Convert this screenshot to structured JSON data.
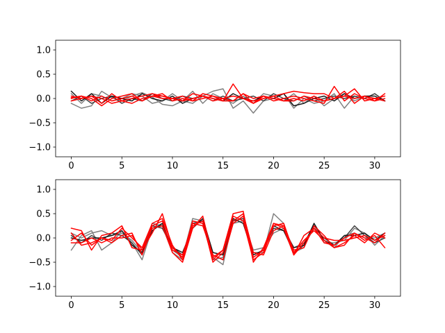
{
  "chart_data": [
    {
      "type": "line",
      "x": [
        0,
        1,
        2,
        3,
        4,
        5,
        6,
        7,
        8,
        9,
        10,
        11,
        12,
        13,
        14,
        15,
        16,
        17,
        18,
        19,
        20,
        21,
        22,
        23,
        24,
        25,
        26,
        27,
        28,
        29,
        30,
        31
      ],
      "xlim": [
        -1.55,
        32.55
      ],
      "ylim": [
        -1.2,
        1.2
      ],
      "xticks": [
        0,
        5,
        10,
        15,
        20,
        25,
        30
      ],
      "yticks": [
        1.0,
        0.5,
        0.0,
        -0.5,
        -1.0
      ],
      "ytick_labels": [
        "1.0",
        "0.5",
        "0.0",
        "−0.5",
        "−1.0"
      ],
      "grid": false,
      "series": [
        {
          "color": "#808080",
          "values": [
            -0.1,
            -0.2,
            -0.15,
            0.15,
            0.02,
            -0.05,
            0.05,
            0.12,
            0.03,
            -0.12,
            -0.15,
            -0.05,
            -0.1,
            0.05,
            0.15,
            0.2,
            -0.2,
            -0.05,
            -0.3,
            -0.05,
            0.0,
            0.1,
            -0.2,
            0.0,
            -0.1,
            -0.05,
            0.1,
            -0.2,
            0.05,
            0.0,
            0.1,
            -0.05
          ]
        },
        {
          "color": "#808080",
          "values": [
            0.1,
            -0.1,
            0.1,
            0.05,
            -0.05,
            0.0,
            0.1,
            0.05,
            -0.1,
            -0.05,
            0.1,
            -0.05,
            0.15,
            -0.1,
            0.1,
            0.0,
            -0.1,
            0.05,
            -0.1,
            0.1,
            0.05,
            -0.05,
            0.1,
            -0.1,
            0.05,
            -0.15,
            0.0,
            0.1,
            -0.05,
            0.05,
            0.0,
            -0.05
          ]
        },
        {
          "color": "#404040",
          "values": [
            -0.05,
            0.05,
            -0.1,
            0.0,
            0.05,
            -0.1,
            0.0,
            -0.05,
            0.1,
            0.0,
            -0.05,
            0.05,
            0.0,
            0.05,
            -0.05,
            0.05,
            -0.05,
            0.0,
            0.05,
            -0.05,
            0.1,
            0.0,
            -0.05,
            0.05,
            -0.05,
            0.0,
            0.05,
            0.0,
            0.05,
            0.0,
            0.1,
            -0.05
          ]
        },
        {
          "color": "#1a1a1a",
          "values": [
            0.15,
            -0.05,
            0.1,
            -0.1,
            0.05,
            0.0,
            -0.05,
            0.1,
            0.0,
            -0.05,
            0.05,
            -0.1,
            0.0,
            0.05,
            0.0,
            -0.05,
            0.1,
            0.0,
            -0.05,
            0.05,
            0.0,
            0.1,
            -0.15,
            -0.1,
            0.0,
            0.05,
            -0.05,
            0.1,
            0.0,
            0.05,
            0.05,
            -0.05
          ]
        },
        {
          "color": "#ff0000",
          "values": [
            0.05,
            0.0,
            0.05,
            -0.1,
            0.1,
            -0.05,
            0.0,
            0.05,
            0.1,
            0.05,
            0.0,
            -0.05,
            0.1,
            0.05,
            0.0,
            -0.05,
            0.3,
            0.0,
            -0.1,
            0.0,
            0.05,
            0.1,
            0.15,
            0.12,
            0.1,
            0.1,
            0.0,
            0.05,
            0.2,
            -0.05,
            0.0,
            0.05
          ]
        },
        {
          "color": "#ff0000",
          "values": [
            0.0,
            0.05,
            -0.05,
            0.05,
            -0.05,
            0.0,
            0.05,
            -0.05,
            0.05,
            0.1,
            -0.05,
            0.0,
            -0.05,
            0.1,
            0.05,
            0.0,
            -0.05,
            0.1,
            -0.1,
            0.05,
            -0.05,
            0.0,
            0.05,
            0.0,
            -0.05,
            -0.1,
            0.25,
            -0.05,
            0.1,
            0.0,
            -0.05,
            0.1
          ]
        },
        {
          "color": "#ff0000",
          "values": [
            -0.05,
            0.0,
            0.05,
            0.0,
            -0.1,
            -0.05,
            -0.1,
            0.0,
            0.05,
            0.05,
            0.0,
            -0.05,
            0.0,
            0.05,
            -0.05,
            0.0,
            0.05,
            0.0,
            -0.05,
            0.0,
            0.05,
            -0.05,
            0.0,
            -0.05,
            0.05,
            -0.05,
            0.0,
            0.05,
            0.0,
            0.05,
            -0.05,
            0.0
          ]
        },
        {
          "color": "#ff0000",
          "values": [
            0.02,
            0.05,
            0.0,
            -0.15,
            0.0,
            0.05,
            0.1,
            -0.05,
            0.05,
            0.0,
            0.0,
            0.05,
            -0.05,
            0.0,
            0.05,
            -0.05,
            -0.05,
            0.1,
            0.0,
            0.05,
            0.0,
            -0.05,
            -0.05,
            0.05,
            0.0,
            -0.05,
            0.0,
            0.15,
            -0.1,
            0.05,
            0.0,
            -0.05
          ]
        }
      ]
    },
    {
      "type": "line",
      "x": [
        0,
        1,
        2,
        3,
        4,
        5,
        6,
        7,
        8,
        9,
        10,
        11,
        12,
        13,
        14,
        15,
        16,
        17,
        18,
        19,
        20,
        21,
        22,
        23,
        24,
        25,
        26,
        27,
        28,
        29,
        30,
        31
      ],
      "xlim": [
        -1.55,
        32.55
      ],
      "ylim": [
        -1.2,
        1.2
      ],
      "xticks": [
        0,
        5,
        10,
        15,
        20,
        25,
        30
      ],
      "yticks": [
        1.0,
        0.5,
        0.0,
        -0.5,
        -1.0
      ],
      "ytick_labels": [
        "1.0",
        "0.5",
        "0.0",
        "−0.5",
        "−1.0"
      ],
      "grid": false,
      "series": [
        {
          "color": "#808080",
          "values": [
            -0.25,
            0.05,
            0.15,
            -0.25,
            -0.1,
            0.15,
            -0.1,
            -0.45,
            0.2,
            0.3,
            -0.25,
            -0.4,
            0.4,
            0.35,
            -0.4,
            -0.55,
            0.4,
            0.3,
            -0.3,
            -0.3,
            0.5,
            0.3,
            -0.3,
            -0.2,
            0.3,
            -0.1,
            -0.1,
            -0.05,
            0.2,
            0.1,
            -0.15,
            0.05
          ]
        },
        {
          "color": "#808080",
          "values": [
            0.1,
            0.0,
            0.1,
            0.15,
            0.05,
            0.1,
            -0.05,
            -0.3,
            0.3,
            0.25,
            -0.3,
            -0.45,
            0.35,
            0.3,
            -0.45,
            -0.4,
            0.3,
            0.35,
            -0.25,
            -0.2,
            0.1,
            0.2,
            -0.2,
            -0.1,
            0.25,
            -0.05,
            -0.2,
            0.05,
            0.1,
            0.0,
            0.0,
            0.1
          ]
        },
        {
          "color": "#404040",
          "values": [
            0.05,
            -0.1,
            0.05,
            -0.05,
            0.1,
            0.05,
            -0.1,
            -0.35,
            0.25,
            0.2,
            -0.2,
            -0.35,
            0.3,
            0.35,
            -0.35,
            -0.45,
            0.35,
            0.4,
            -0.35,
            -0.25,
            0.2,
            0.15,
            -0.3,
            -0.15,
            0.2,
            0.0,
            -0.15,
            0.0,
            0.25,
            0.05,
            -0.1,
            0.0
          ]
        },
        {
          "color": "#1a1a1a",
          "values": [
            0.0,
            -0.05,
            0.0,
            0.0,
            0.05,
            0.15,
            -0.15,
            -0.3,
            0.15,
            0.3,
            -0.2,
            -0.3,
            0.2,
            0.4,
            -0.3,
            -0.35,
            0.4,
            0.3,
            -0.35,
            -0.25,
            0.25,
            0.15,
            -0.2,
            -0.15,
            0.3,
            -0.05,
            -0.15,
            0.05,
            0.05,
            0.1,
            -0.05,
            0.1
          ]
        },
        {
          "color": "#ff0000",
          "values": [
            0.2,
            0.15,
            -0.25,
            0.05,
            0.1,
            0.25,
            -0.2,
            -0.25,
            0.1,
            0.5,
            -0.2,
            -0.4,
            0.35,
            0.3,
            -0.45,
            -0.25,
            0.5,
            0.55,
            -0.5,
            -0.2,
            0.3,
            0.25,
            -0.35,
            0.05,
            0.2,
            -0.1,
            -0.15,
            0.0,
            0.1,
            -0.05,
            0.05,
            -0.2
          ]
        },
        {
          "color": "#ff0000",
          "values": [
            -0.05,
            0.1,
            -0.15,
            0.0,
            -0.1,
            0.05,
            0.1,
            -0.35,
            0.2,
            0.25,
            -0.3,
            -0.5,
            0.2,
            0.45,
            -0.4,
            -0.25,
            0.45,
            0.35,
            -0.45,
            -0.3,
            0.25,
            0.3,
            -0.3,
            -0.05,
            0.15,
            -0.05,
            -0.2,
            -0.1,
            0.05,
            -0.1,
            0.1,
            0.0
          ]
        },
        {
          "color": "#ff0000",
          "values": [
            0.1,
            -0.15,
            -0.1,
            0.0,
            -0.05,
            0.2,
            0.0,
            -0.2,
            0.3,
            0.4,
            -0.15,
            -0.45,
            0.25,
            0.35,
            -0.5,
            -0.3,
            0.35,
            0.5,
            -0.3,
            -0.35,
            0.15,
            0.25,
            -0.25,
            -0.2,
            0.25,
            0.05,
            -0.2,
            -0.15,
            0.1,
            0.0,
            -0.1,
            0.1
          ]
        },
        {
          "color": "#ff0000",
          "values": [
            -0.1,
            -0.1,
            0.0,
            -0.1,
            0.0,
            0.0,
            0.05,
            -0.25,
            0.25,
            0.35,
            -0.25,
            -0.35,
            0.3,
            0.25,
            -0.35,
            -0.45,
            0.3,
            0.45,
            -0.4,
            -0.25,
            0.3,
            0.2,
            -0.35,
            -0.1,
            0.2,
            0.0,
            -0.05,
            -0.05,
            0.0,
            0.05,
            -0.05,
            0.05
          ]
        }
      ]
    }
  ]
}
